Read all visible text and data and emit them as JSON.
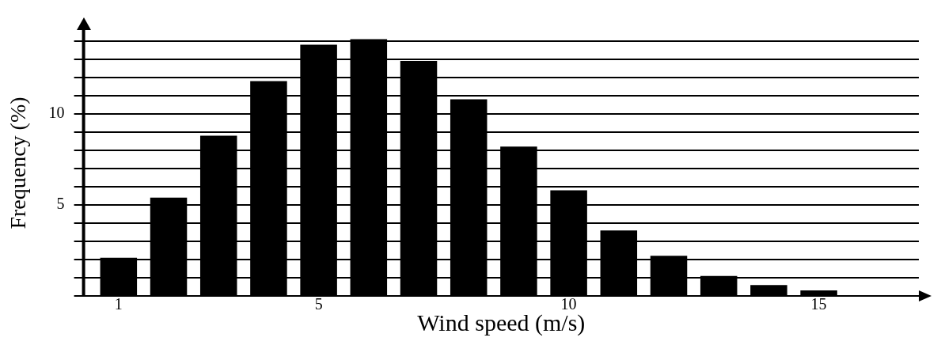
{
  "chart_data": {
    "type": "bar",
    "xlabel": "Wind speed (m/s)",
    "ylabel": "Frequency (%)",
    "x": [
      1,
      2,
      3,
      4,
      5,
      6,
      7,
      8,
      9,
      10,
      11,
      12,
      13,
      14,
      15
    ],
    "values": [
      2.1,
      5.4,
      8.8,
      11.8,
      13.8,
      14.1,
      12.9,
      10.8,
      8.2,
      5.8,
      3.6,
      2.2,
      1.1,
      0.6,
      0.3
    ],
    "color": "#000000",
    "xlim": [
      0.3,
      17
    ],
    "xticks": [
      1,
      5,
      10,
      15
    ],
    "ylim": [
      0,
      14.6
    ],
    "yticks": [
      {
        "value": 0,
        "label": null
      },
      {
        "value": 1,
        "label": null
      },
      {
        "value": 2,
        "label": null
      },
      {
        "value": 3,
        "label": null
      },
      {
        "value": 4,
        "label": null
      },
      5,
      {
        "value": 6,
        "label": null
      },
      {
        "value": 7,
        "label": null
      },
      {
        "value": 8,
        "label": null
      },
      {
        "value": 9,
        "label": null
      },
      10,
      {
        "value": 11,
        "label": null
      },
      {
        "value": 12,
        "label": null
      },
      {
        "value": 13,
        "label": null
      },
      {
        "value": 14,
        "label": null
      }
    ],
    "grid": "y"
  }
}
